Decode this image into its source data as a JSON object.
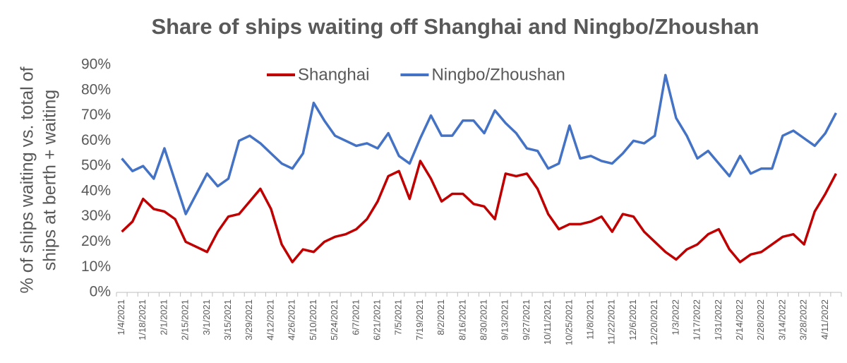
{
  "chart_data": {
    "type": "line",
    "title": "Share of ships waiting off Shanghai and Ningbo/Zhoushan",
    "y_label": [
      "% of ships waiting vs. total of",
      "ships at berth + waiting"
    ],
    "categories": [
      "1/4/2021",
      null,
      "1/18/2021",
      null,
      "2/1/2021",
      null,
      "2/15/2021",
      null,
      "3/1/2021",
      null,
      "3/15/2021",
      null,
      "3/29/2021",
      null,
      "4/12/2021",
      null,
      "4/26/2021",
      null,
      "5/10/2021",
      null,
      "5/24/2021",
      null,
      "6/7/2021",
      null,
      "6/21/2021",
      null,
      "7/5/2021",
      null,
      "7/19/2021",
      null,
      "8/2/2021",
      null,
      "8/16/2021",
      null,
      "8/30/2021",
      null,
      "9/13/2021",
      null,
      "9/27/2021",
      null,
      "10/11/2021",
      null,
      "10/25/2021",
      null,
      "11/8/2021",
      null,
      "11/22/2021",
      null,
      "12/6/2021",
      null,
      "12/20/2021",
      null,
      "1/3/2022",
      null,
      "1/17/2022",
      null,
      "1/31/2022",
      null,
      "2/14/2022",
      null,
      "2/28/2022",
      null,
      "3/14/2022",
      null,
      "3/28/2022",
      null,
      "4/11/2022",
      null
    ],
    "series": [
      {
        "name": "Shanghai",
        "color": "#c00000",
        "values": [
          24,
          28,
          37,
          33,
          32,
          29,
          20,
          18,
          16,
          24,
          30,
          31,
          36,
          41,
          33,
          19,
          12,
          17,
          16,
          20,
          22,
          23,
          25,
          29,
          36,
          46,
          48,
          37,
          52,
          45,
          36,
          39,
          39,
          35,
          34,
          29,
          47,
          46,
          47,
          41,
          31,
          25,
          27,
          27,
          28,
          30,
          24,
          31,
          30,
          24,
          20,
          16,
          13,
          17,
          19,
          23,
          25,
          17,
          12,
          15,
          16,
          19,
          22,
          23,
          19,
          32,
          39,
          47
        ]
      },
      {
        "name": "Ningbo/Zhoushan",
        "color": "#4472c4",
        "values": [
          53,
          48,
          50,
          45,
          57,
          44,
          31,
          39,
          47,
          42,
          45,
          60,
          62,
          59,
          55,
          51,
          49,
          55,
          75,
          68,
          62,
          60,
          58,
          59,
          57,
          63,
          54,
          51,
          61,
          70,
          62,
          62,
          68,
          68,
          63,
          72,
          67,
          63,
          57,
          56,
          49,
          51,
          66,
          53,
          54,
          52,
          51,
          55,
          60,
          59,
          62,
          86,
          69,
          62,
          53,
          56,
          51,
          46,
          54,
          47,
          49,
          49,
          62,
          64,
          61,
          58,
          63,
          71
        ]
      }
    ],
    "ylim": [
      0,
      90
    ],
    "yticks": [
      {
        "value": 0,
        "label": "0%"
      },
      {
        "value": 10,
        "label": "10%"
      },
      {
        "value": 20,
        "label": "20%"
      },
      {
        "value": 30,
        "label": "30%"
      },
      {
        "value": 40,
        "label": "40%"
      },
      {
        "value": 50,
        "label": "50%"
      },
      {
        "value": 60,
        "label": "60%"
      },
      {
        "value": 70,
        "label": "70%"
      },
      {
        "value": 80,
        "label": "80%"
      },
      {
        "value": 90,
        "label": "90%"
      }
    ],
    "grid": false
  }
}
